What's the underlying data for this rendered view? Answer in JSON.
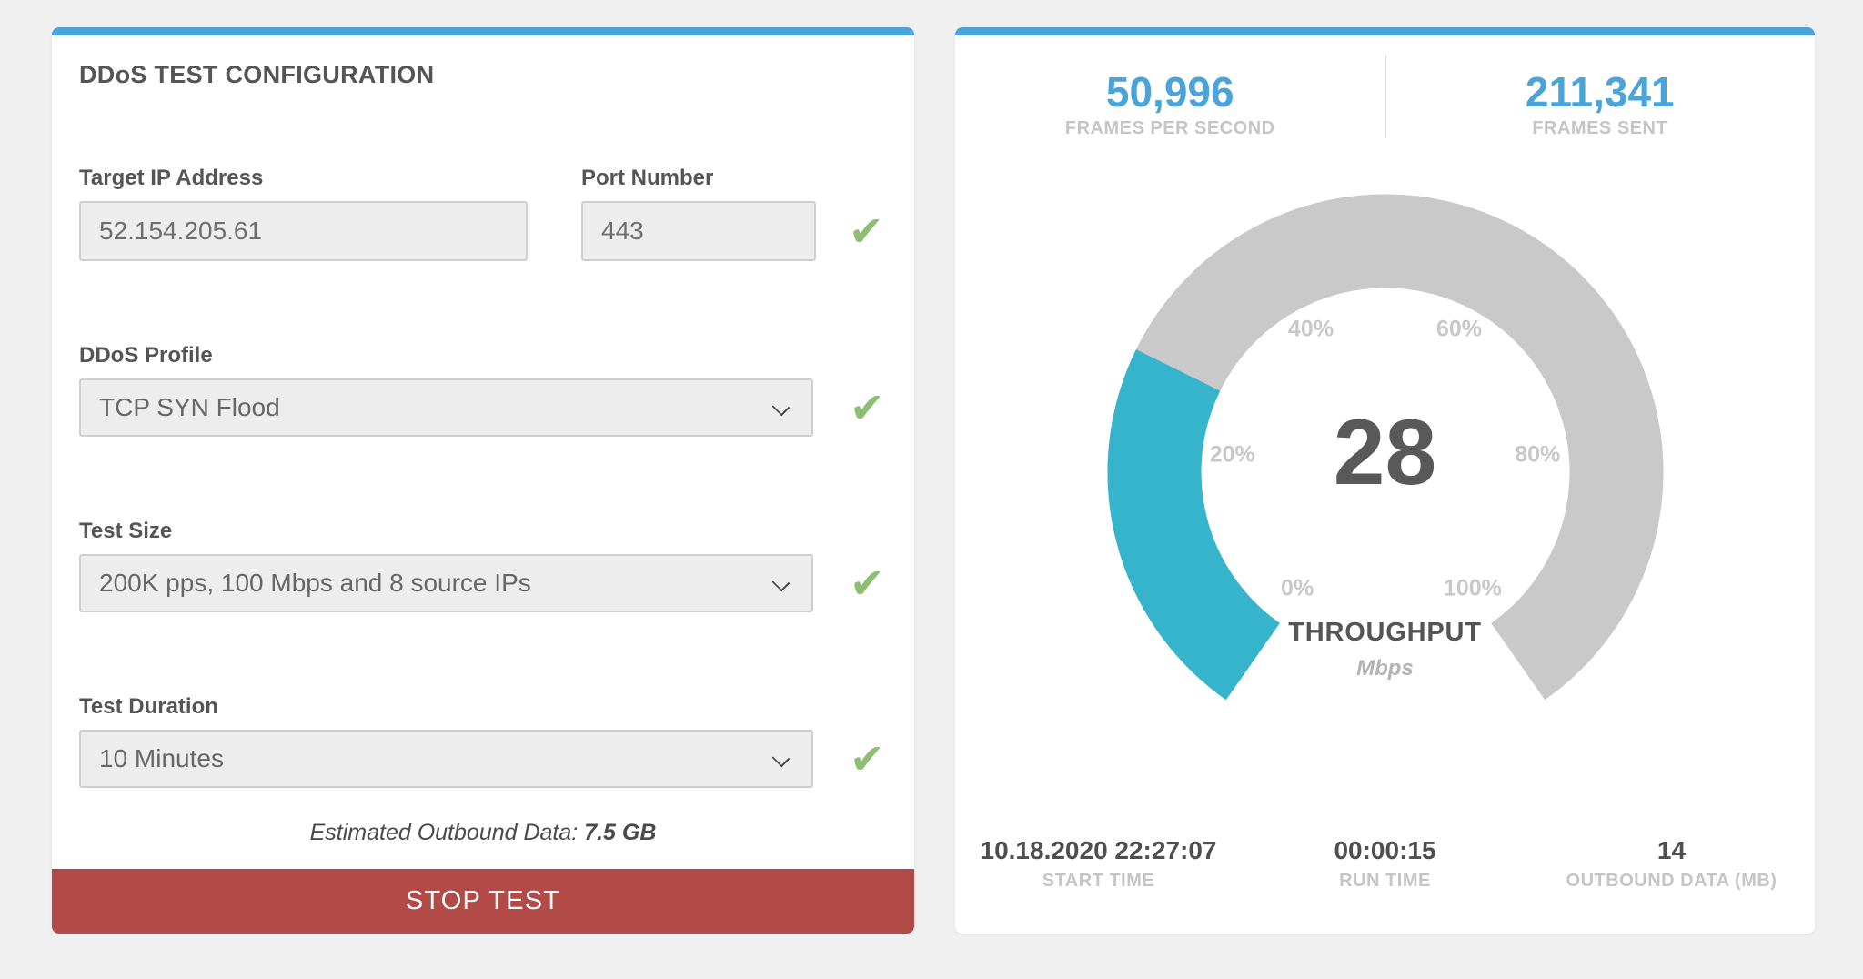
{
  "page": {
    "bg_color": "#f0f0f0",
    "accent_blue": "#4aa4d9",
    "button_red": "#b24a48",
    "check_green": "#8ebe72"
  },
  "icons": {
    "check": "✔"
  },
  "config_panel": {
    "title": "DDoS TEST CONFIGURATION",
    "fields": {
      "target_ip": {
        "label": "Target IP Address",
        "value": "52.154.205.61"
      },
      "port": {
        "label": "Port Number",
        "value": "443"
      },
      "profile": {
        "label": "DDoS Profile",
        "value": "TCP SYN Flood"
      },
      "test_size": {
        "label": "Test Size",
        "value": "200K pps, 100 Mbps and 8 source IPs"
      },
      "duration": {
        "label": "Test Duration",
        "value": "10 Minutes"
      }
    },
    "estimate_label": "Estimated Outbound Data:",
    "estimate_value": "7.5 GB",
    "stop_button_label": "STOP TEST"
  },
  "status_panel": {
    "fps": {
      "value": "50,996",
      "label": "FRAMES PER SECOND"
    },
    "frames_sent": {
      "value": "211,341",
      "label": "FRAMES SENT"
    },
    "start_time": {
      "value": "10.18.2020 22:27:07",
      "label": "START TIME"
    },
    "run_time": {
      "value": "00:00:15",
      "label": "RUN TIME"
    },
    "outbound": {
      "value": "14",
      "label": "OUTBOUND DATA (MB)"
    }
  },
  "chart_data": {
    "type": "gauge",
    "title": "THROUGHPUT",
    "unit": "Mbps",
    "value": 28,
    "min": 0,
    "max": 100,
    "ticks": [
      "0%",
      "20%",
      "40%",
      "60%",
      "80%",
      "100%"
    ],
    "start_angle_deg": 215,
    "sweep_deg": 290,
    "value_color": "#35b4cb",
    "track_color": "#c9c9c9",
    "legend": "percent labels placed inside ring; value shown in center"
  }
}
